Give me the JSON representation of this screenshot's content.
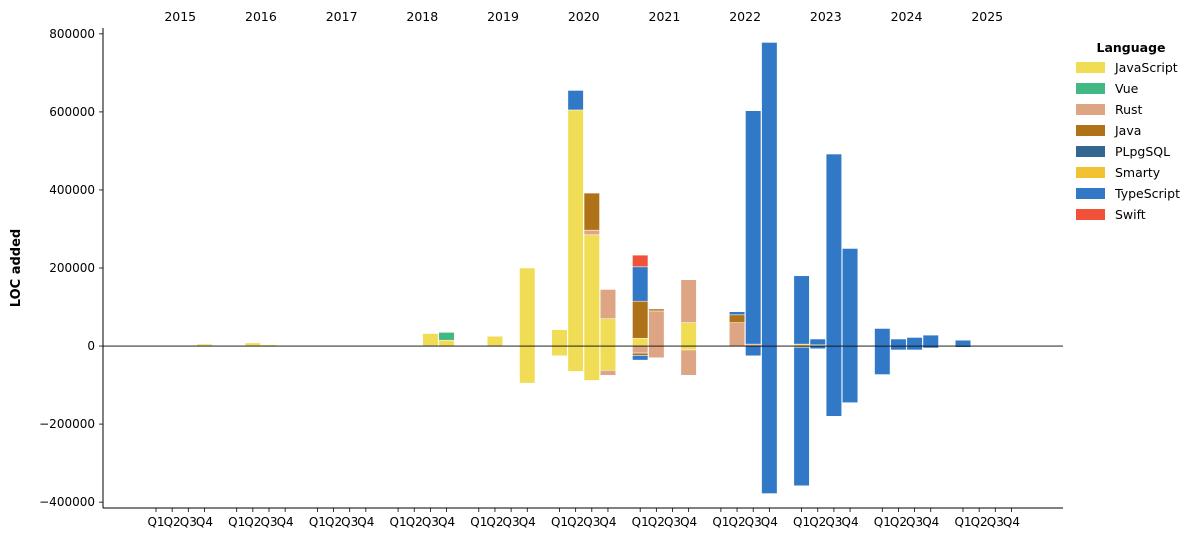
{
  "chart_data": {
    "type": "bar",
    "stacked": true,
    "ylabel": "LOC added",
    "ylim": [
      -415000,
      815000
    ],
    "yticks": [
      -400000,
      -200000,
      0,
      200000,
      400000,
      600000,
      800000
    ],
    "ytick_labels": [
      "−400000",
      "−200000",
      "0",
      "200000",
      "400000",
      "600000",
      "800000"
    ],
    "years": [
      "2015",
      "2016",
      "2017",
      "2018",
      "2019",
      "2020",
      "2021",
      "2022",
      "2023",
      "2024",
      "2025"
    ],
    "quarter_labels": [
      "Q1",
      "Q2",
      "Q3",
      "Q4"
    ],
    "legend_title": "Language",
    "legend_position": "top-right, outside plot",
    "series": [
      {
        "name": "JavaScript",
        "color": "#f0dc55",
        "values": [
          [
            0,
            0,
            0,
            5000
          ],
          [
            0,
            8000,
            3000,
            0
          ],
          [
            0,
            0,
            0,
            0
          ],
          [
            0,
            0,
            32000,
            15000
          ],
          [
            0,
            25000,
            0,
            200000
          ],
          [
            42000,
            605000,
            285000,
            70000
          ],
          [
            20000,
            0,
            0,
            60000
          ],
          [
            0,
            0,
            0,
            0
          ],
          [
            5000,
            3000,
            0,
            0
          ],
          [
            0,
            0,
            0,
            0
          ],
          [
            0,
            0,
            0,
            0
          ]
        ]
      },
      {
        "name": "Vue",
        "color": "#42b883",
        "values": [
          [
            0,
            0,
            0,
            0
          ],
          [
            0,
            0,
            0,
            0
          ],
          [
            0,
            0,
            0,
            0
          ],
          [
            0,
            0,
            0,
            20000
          ],
          [
            0,
            0,
            0,
            0
          ],
          [
            0,
            0,
            0,
            0
          ],
          [
            0,
            0,
            0,
            0
          ],
          [
            0,
            0,
            0,
            0
          ],
          [
            0,
            0,
            0,
            0
          ],
          [
            0,
            0,
            0,
            0
          ],
          [
            0,
            0,
            0,
            0
          ]
        ]
      },
      {
        "name": "Rust",
        "color": "#dea584",
        "values": [
          [
            0,
            0,
            0,
            0
          ],
          [
            0,
            0,
            0,
            0
          ],
          [
            0,
            0,
            0,
            0
          ],
          [
            0,
            0,
            0,
            0
          ],
          [
            0,
            0,
            0,
            0
          ],
          [
            0,
            0,
            12000,
            75000
          ],
          [
            0,
            90000,
            0,
            110000
          ],
          [
            0,
            60000,
            5000,
            0
          ],
          [
            0,
            0,
            0,
            0
          ],
          [
            0,
            0,
            0,
            0
          ],
          [
            0,
            0,
            0,
            0
          ]
        ]
      },
      {
        "name": "Java",
        "color": "#b07219",
        "values": [
          [
            0,
            0,
            0,
            0
          ],
          [
            0,
            0,
            0,
            0
          ],
          [
            0,
            0,
            0,
            0
          ],
          [
            0,
            0,
            0,
            0
          ],
          [
            0,
            0,
            0,
            0
          ],
          [
            0,
            0,
            95000,
            0
          ],
          [
            95000,
            5000,
            0,
            0
          ],
          [
            0,
            20000,
            0,
            0
          ],
          [
            0,
            0,
            0,
            0
          ],
          [
            0,
            0,
            0,
            0
          ],
          [
            0,
            0,
            0,
            0
          ]
        ]
      },
      {
        "name": "PLpgSQL",
        "color": "#336791",
        "values": [
          [
            0,
            0,
            0,
            0
          ],
          [
            0,
            0,
            0,
            0
          ],
          [
            0,
            0,
            0,
            0
          ],
          [
            0,
            0,
            0,
            0
          ],
          [
            0,
            0,
            0,
            0
          ],
          [
            0,
            0,
            0,
            0
          ],
          [
            0,
            0,
            0,
            0
          ],
          [
            0,
            0,
            0,
            0
          ],
          [
            0,
            0,
            0,
            0
          ],
          [
            0,
            0,
            0,
            0
          ],
          [
            0,
            0,
            0,
            0
          ]
        ]
      },
      {
        "name": "Smarty",
        "color": "#f1c232",
        "values": [
          [
            0,
            0,
            0,
            0
          ],
          [
            0,
            0,
            0,
            0
          ],
          [
            0,
            0,
            0,
            0
          ],
          [
            0,
            0,
            0,
            0
          ],
          [
            0,
            0,
            0,
            0
          ],
          [
            0,
            0,
            0,
            0
          ],
          [
            0,
            0,
            0,
            0
          ],
          [
            0,
            0,
            0,
            0
          ],
          [
            0,
            0,
            0,
            0
          ],
          [
            0,
            0,
            0,
            0
          ],
          [
            0,
            0,
            0,
            0
          ]
        ]
      },
      {
        "name": "TypeScript",
        "color": "#3178c6",
        "values": [
          [
            0,
            0,
            0,
            0
          ],
          [
            0,
            0,
            0,
            0
          ],
          [
            0,
            0,
            0,
            0
          ],
          [
            0,
            0,
            0,
            0
          ],
          [
            0,
            0,
            0,
            0
          ],
          [
            0,
            50000,
            0,
            0
          ],
          [
            88000,
            0,
            0,
            0
          ],
          [
            0,
            8000,
            598000,
            778000
          ],
          [
            175000,
            15000,
            492000,
            250000
          ],
          [
            45000,
            18000,
            22000,
            28000
          ],
          [
            15000,
            0,
            0,
            0
          ]
        ]
      },
      {
        "name": "Swift",
        "color": "#f05138",
        "values": [
          [
            0,
            0,
            0,
            0
          ],
          [
            0,
            0,
            0,
            0
          ],
          [
            0,
            0,
            0,
            0
          ],
          [
            0,
            0,
            0,
            0
          ],
          [
            0,
            0,
            0,
            0
          ],
          [
            0,
            0,
            0,
            0
          ],
          [
            30000,
            0,
            0,
            0
          ],
          [
            0,
            0,
            0,
            0
          ],
          [
            0,
            0,
            0,
            0
          ],
          [
            0,
            0,
            0,
            0
          ],
          [
            0,
            0,
            0,
            0
          ]
        ]
      }
    ],
    "removed": {
      "JavaScript": [
        [
          0,
          0,
          0,
          0
        ],
        [
          0,
          0,
          0,
          0
        ],
        [
          0,
          0,
          0,
          0
        ],
        [
          0,
          0,
          0,
          0
        ],
        [
          0,
          0,
          0,
          -95000
        ],
        [
          -25000,
          -65000,
          -88000,
          -62000
        ],
        [
          0,
          0,
          0,
          -10000
        ],
        [
          0,
          0,
          0,
          0
        ],
        [
          0,
          0,
          0,
          0
        ],
        [
          0,
          0,
          0,
          0
        ],
        [
          0,
          0,
          0,
          0
        ]
      ],
      "Rust": [
        [
          0,
          0,
          0,
          0
        ],
        [
          0,
          0,
          0,
          0
        ],
        [
          0,
          0,
          0,
          0
        ],
        [
          0,
          0,
          0,
          0
        ],
        [
          0,
          0,
          0,
          0
        ],
        [
          0,
          0,
          0,
          -13000
        ],
        [
          -18000,
          -30000,
          0,
          -65000
        ],
        [
          0,
          0,
          0,
          0
        ],
        [
          -3000,
          0,
          0,
          0
        ],
        [
          0,
          0,
          0,
          0
        ],
        [
          0,
          0,
          0,
          0
        ]
      ],
      "Java": [
        [
          0,
          0,
          0,
          0
        ],
        [
          0,
          0,
          0,
          0
        ],
        [
          0,
          0,
          0,
          0
        ],
        [
          0,
          0,
          0,
          0
        ],
        [
          0,
          0,
          0,
          0
        ],
        [
          0,
          0,
          0,
          0
        ],
        [
          -6000,
          0,
          0,
          0
        ],
        [
          0,
          0,
          0,
          0
        ],
        [
          0,
          0,
          0,
          0
        ],
        [
          0,
          0,
          0,
          0
        ],
        [
          0,
          0,
          0,
          0
        ]
      ],
      "TypeScript": [
        [
          0,
          0,
          0,
          0
        ],
        [
          0,
          0,
          0,
          0
        ],
        [
          0,
          0,
          0,
          0
        ],
        [
          0,
          0,
          0,
          0
        ],
        [
          0,
          0,
          0,
          0
        ],
        [
          0,
          0,
          0,
          0
        ],
        [
          -12000,
          0,
          0,
          0
        ],
        [
          0,
          0,
          -25000,
          -378000
        ],
        [
          -355000,
          -7000,
          -180000,
          -145000
        ],
        [
          -73000,
          -10000,
          -10000,
          -5000
        ],
        [
          -3000,
          0,
          0,
          0
        ]
      ]
    }
  }
}
